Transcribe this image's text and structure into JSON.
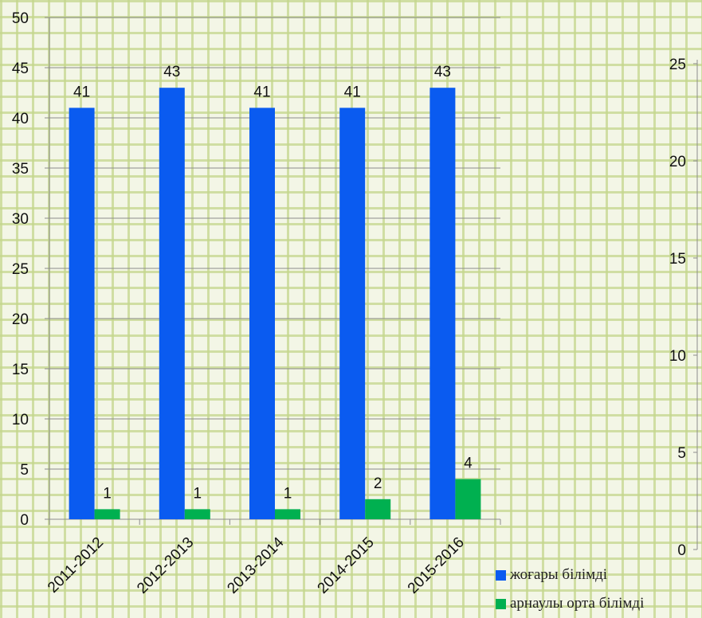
{
  "chart_data": [
    {
      "type": "bar",
      "categories": [
        "2011-2012",
        "2012-2013",
        "2013-2014",
        "2014-2015",
        "2015-2016"
      ],
      "series": [
        {
          "name": "жоғары білімді",
          "values": [
            41,
            43,
            41,
            41,
            43
          ],
          "color": "#0a5bf0"
        },
        {
          "name": "арнаулы орта білімді",
          "values": [
            1,
            1,
            1,
            2,
            4
          ],
          "color": "#00b050"
        }
      ],
      "y_ticks": [
        "0",
        "5",
        "10",
        "15",
        "20",
        "25",
        "30",
        "35",
        "40",
        "45",
        "50"
      ],
      "ylim": [
        0,
        50
      ],
      "grid": true,
      "legend": "bottom-right",
      "data_labels": true
    },
    {
      "type": "axis",
      "y_ticks": [
        "0",
        "5",
        "10",
        "15",
        "20",
        "25"
      ],
      "ylim": [
        0,
        25
      ]
    }
  ]
}
